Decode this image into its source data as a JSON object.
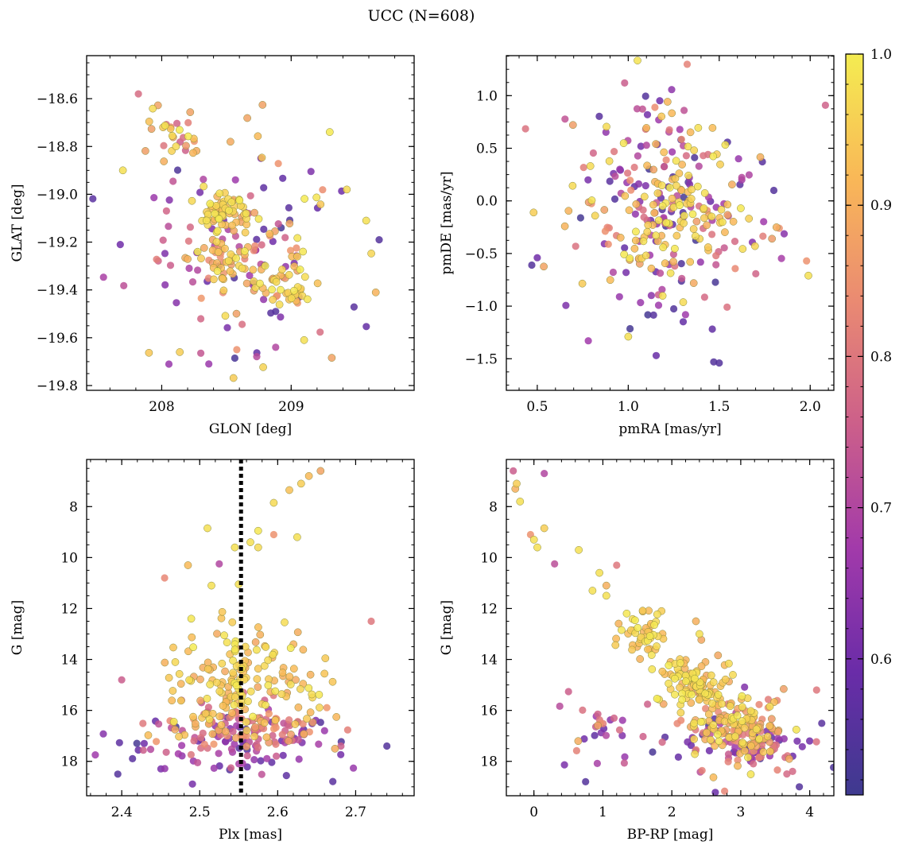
{
  "figure": {
    "title": "UCC (N=608)"
  },
  "colorbar": {
    "ticks": [
      0.6,
      0.7,
      0.8,
      0.9,
      1.0
    ],
    "tick_labels": [
      "0.6",
      "0.7",
      "0.8",
      "0.9",
      "1.0"
    ],
    "range": [
      0.51,
      1.0
    ],
    "colormap": "plasma",
    "colors": [
      "#3e3a8f",
      "#6a2ca8",
      "#a23aaa",
      "#cc5f8a",
      "#ea8a72",
      "#f9b857",
      "#f4ec51"
    ]
  },
  "chart_data": [
    {
      "id": "glon-glat",
      "type": "scatter",
      "title": "",
      "xlabel": "GLON [deg]",
      "ylabel": "GLAT [deg]",
      "xlim": [
        207.42,
        209.95
      ],
      "ylim": [
        -19.82,
        -18.42
      ],
      "xticks": [
        208,
        209
      ],
      "xtick_labels": [
        "208",
        "209"
      ],
      "yticks": [
        -18.6,
        -18.8,
        -19.0,
        -19.2,
        -19.4,
        -19.6,
        -19.8
      ],
      "ytick_labels": [
        "−18.6",
        "−18.8",
        "−19.0",
        "−19.2",
        "−19.4",
        "−19.6",
        "−19.8"
      ],
      "clusters": [
        {
          "cx": 208.5,
          "cy": -19.07,
          "sx": 0.09,
          "sy": 0.045,
          "n": 55,
          "p": [
            0.88,
            1.0
          ]
        },
        {
          "cx": 208.95,
          "cy": -19.38,
          "sx": 0.11,
          "sy": 0.05,
          "n": 40,
          "p": [
            0.85,
            1.0
          ]
        },
        {
          "cx": 208.52,
          "cy": -19.28,
          "sx": 0.14,
          "sy": 0.06,
          "n": 40,
          "p": [
            0.82,
            1.0
          ]
        },
        {
          "cx": 208.1,
          "cy": -18.72,
          "sx": 0.12,
          "sy": 0.07,
          "n": 25,
          "p": [
            0.75,
            1.0
          ]
        },
        {
          "cx": 208.65,
          "cy": -19.2,
          "sx": 0.38,
          "sy": 0.22,
          "n": 140,
          "p": [
            0.52,
            1.0
          ]
        }
      ],
      "points": [
        {
          "x": 207.7,
          "y": -18.9,
          "p": 0.98
        },
        {
          "x": 207.68,
          "y": -19.21,
          "p": 0.6
        },
        {
          "x": 207.82,
          "y": -18.58,
          "p": 0.78
        },
        {
          "x": 208.14,
          "y": -19.66,
          "p": 0.95
        },
        {
          "x": 208.58,
          "y": -19.65,
          "p": 0.85
        },
        {
          "x": 209.58,
          "y": -19.11,
          "p": 0.98
        },
        {
          "x": 209.68,
          "y": -19.19,
          "p": 0.55
        },
        {
          "x": 209.1,
          "y": -19.61,
          "p": 0.98
        },
        {
          "x": 208.88,
          "y": -19.64,
          "p": 0.7
        },
        {
          "x": 209.43,
          "y": -18.98,
          "p": 0.97
        }
      ]
    },
    {
      "id": "pmra-pmde",
      "type": "scatter",
      "title": "",
      "xlabel": "pmRA [mas/yr]",
      "ylabel": "pmDE [mas/yr]",
      "xlim": [
        0.33,
        2.13
      ],
      "ylim": [
        -1.8,
        1.38
      ],
      "xticks": [
        0.5,
        1.0,
        1.5,
        2.0
      ],
      "xtick_labels": [
        "0.5",
        "1.0",
        "1.5",
        "2.0"
      ],
      "yticks": [
        1.0,
        0.5,
        0.0,
        -0.5,
        -1.0,
        -1.5
      ],
      "ytick_labels": [
        "1.0",
        "0.5",
        "0.0",
        "−0.5",
        "−1.0",
        "−1.5"
      ],
      "clusters": [
        {
          "cx": 1.24,
          "cy": -0.05,
          "sx": 0.28,
          "sy": 0.5,
          "n": 230,
          "p": [
            0.52,
            1.0
          ]
        },
        {
          "cx": 1.25,
          "cy": -0.1,
          "sx": 0.15,
          "sy": 0.3,
          "n": 70,
          "p": [
            0.9,
            1.0
          ]
        }
      ],
      "points": [
        {
          "x": 0.47,
          "y": -0.61,
          "p": 0.55
        },
        {
          "x": 0.5,
          "y": -0.54,
          "p": 0.6
        },
        {
          "x": 0.48,
          "y": -0.11,
          "p": 0.95
        },
        {
          "x": 0.98,
          "y": 1.12,
          "p": 0.75
        },
        {
          "x": 1.47,
          "y": -1.53,
          "p": 0.55
        },
        {
          "x": 1.5,
          "y": -1.54,
          "p": 0.55
        },
        {
          "x": 1.99,
          "y": -0.71,
          "p": 0.98
        },
        {
          "x": 1.98,
          "y": -0.57,
          "p": 0.85
        },
        {
          "x": 1.83,
          "y": -0.26,
          "p": 0.85
        },
        {
          "x": 1.8,
          "y": 0.1,
          "p": 0.55
        },
        {
          "x": 1.0,
          "y": -1.29,
          "p": 0.98
        }
      ]
    },
    {
      "id": "plx-g",
      "type": "scatter",
      "title": "",
      "xlabel": "Plx [mas]",
      "ylabel": "G [mag]",
      "xlim": [
        2.355,
        2.775
      ],
      "ylim": [
        19.35,
        6.15
      ],
      "xticks": [
        2.4,
        2.5,
        2.6,
        2.7
      ],
      "xtick_labels": [
        "2.4",
        "2.5",
        "2.6",
        "2.7"
      ],
      "yticks": [
        8,
        10,
        12,
        14,
        16,
        18
      ],
      "ytick_labels": [
        "8",
        "10",
        "12",
        "14",
        "16",
        "18"
      ],
      "vline": {
        "x": 2.553,
        "style": "dotted"
      },
      "clusters": [
        {
          "cx": 2.56,
          "cy": 14.6,
          "sx": 0.045,
          "sy": 1.0,
          "n": 140,
          "p": [
            0.88,
            1.0
          ]
        },
        {
          "cx": 2.56,
          "cy": 16.6,
          "sx": 0.06,
          "sy": 0.55,
          "n": 110,
          "p": [
            0.72,
            0.95
          ]
        },
        {
          "cx": 2.55,
          "cy": 17.3,
          "sx": 0.085,
          "sy": 0.75,
          "n": 100,
          "p": [
            0.52,
            0.78
          ]
        }
      ],
      "points": [
        {
          "x": 2.64,
          "y": 6.8,
          "p": 0.92
        },
        {
          "x": 2.655,
          "y": 6.6,
          "p": 0.88
        },
        {
          "x": 2.63,
          "y": 7.1,
          "p": 0.95
        },
        {
          "x": 2.615,
          "y": 7.35,
          "p": 0.93
        },
        {
          "x": 2.595,
          "y": 7.85,
          "p": 0.97
        },
        {
          "x": 2.51,
          "y": 8.85,
          "p": 0.98
        },
        {
          "x": 2.575,
          "y": 8.95,
          "p": 0.99
        },
        {
          "x": 2.595,
          "y": 9.1,
          "p": 0.85
        },
        {
          "x": 2.625,
          "y": 9.2,
          "p": 0.98
        },
        {
          "x": 2.565,
          "y": 9.4,
          "p": 0.98
        },
        {
          "x": 2.575,
          "y": 9.6,
          "p": 0.97
        },
        {
          "x": 2.545,
          "y": 9.6,
          "p": 0.98
        },
        {
          "x": 2.485,
          "y": 10.3,
          "p": 0.92
        },
        {
          "x": 2.525,
          "y": 10.25,
          "p": 0.7
        },
        {
          "x": 2.455,
          "y": 10.8,
          "p": 0.83
        },
        {
          "x": 2.55,
          "y": 11.05,
          "p": 0.98
        },
        {
          "x": 2.515,
          "y": 11.1,
          "p": 0.98
        },
        {
          "x": 2.74,
          "y": 17.4,
          "p": 0.55
        },
        {
          "x": 2.72,
          "y": 12.5,
          "p": 0.8
        },
        {
          "x": 2.395,
          "y": 18.5,
          "p": 0.55
        },
        {
          "x": 2.4,
          "y": 14.8,
          "p": 0.75
        }
      ]
    },
    {
      "id": "bprp-g",
      "type": "scatter",
      "title": "",
      "xlabel": "BP-RP [mag]",
      "ylabel": "G [mag]",
      "xlim": [
        -0.4,
        4.35
      ],
      "ylim": [
        19.35,
        6.15
      ],
      "xticks": [
        0,
        1,
        2,
        3,
        4
      ],
      "xtick_labels": [
        "0",
        "1",
        "2",
        "3",
        "4"
      ],
      "yticks": [
        8,
        10,
        12,
        14,
        16,
        18
      ],
      "ytick_labels": [
        "8",
        "10",
        "12",
        "14",
        "16",
        "18"
      ],
      "clusters": [
        {
          "cx": 1.6,
          "cy": 13.0,
          "sx": 0.18,
          "sy": 0.5,
          "n": 45,
          "p": [
            0.9,
            1.0
          ]
        },
        {
          "cx": 2.3,
          "cy": 15.0,
          "sx": 0.22,
          "sy": 0.55,
          "n": 110,
          "p": [
            0.88,
            1.0
          ]
        },
        {
          "cx": 3.0,
          "cy": 16.6,
          "sx": 0.3,
          "sy": 0.5,
          "n": 110,
          "p": [
            0.8,
            1.0
          ]
        },
        {
          "cx": 3.3,
          "cy": 17.4,
          "sx": 0.3,
          "sy": 0.4,
          "n": 60,
          "p": [
            0.55,
            0.95
          ]
        },
        {
          "cx": 0.9,
          "cy": 16.8,
          "sx": 0.25,
          "sy": 0.7,
          "n": 25,
          "p": [
            0.52,
            0.9
          ]
        },
        {
          "cx": 2.7,
          "cy": 17.3,
          "sx": 0.6,
          "sy": 0.9,
          "n": 60,
          "p": [
            0.52,
            1.0
          ]
        }
      ],
      "points": [
        {
          "x": -0.3,
          "y": 6.6,
          "p": 0.75
        },
        {
          "x": 0.15,
          "y": 6.7,
          "p": 0.7
        },
        {
          "x": -0.25,
          "y": 7.1,
          "p": 0.95
        },
        {
          "x": -0.27,
          "y": 7.3,
          "p": 0.9
        },
        {
          "x": -0.2,
          "y": 7.8,
          "p": 0.98
        },
        {
          "x": -0.05,
          "y": 9.1,
          "p": 0.85
        },
        {
          "x": 0.15,
          "y": 8.85,
          "p": 0.95
        },
        {
          "x": 0.0,
          "y": 9.3,
          "p": 0.98
        },
        {
          "x": 0.05,
          "y": 9.6,
          "p": 0.98
        },
        {
          "x": 0.3,
          "y": 10.25,
          "p": 0.72
        },
        {
          "x": 0.65,
          "y": 9.7,
          "p": 0.98
        },
        {
          "x": 0.95,
          "y": 10.6,
          "p": 0.98
        },
        {
          "x": 1.2,
          "y": 10.3,
          "p": 0.8
        },
        {
          "x": 0.85,
          "y": 11.3,
          "p": 0.98
        },
        {
          "x": 1.05,
          "y": 11.1,
          "p": 0.9
        },
        {
          "x": 1.05,
          "y": 11.5,
          "p": 0.98
        },
        {
          "x": 4.1,
          "y": 15.2,
          "p": 0.8
        },
        {
          "x": 4.0,
          "y": 17.2,
          "p": 0.6
        },
        {
          "x": 3.85,
          "y": 19.0,
          "p": 0.55
        },
        {
          "x": 0.75,
          "y": 18.8,
          "p": 0.55
        },
        {
          "x": 2.35,
          "y": 12.5,
          "p": 0.9
        },
        {
          "x": 1.85,
          "y": 12.1,
          "p": 0.95
        },
        {
          "x": 2.4,
          "y": 13.0,
          "p": 0.98
        }
      ]
    }
  ]
}
